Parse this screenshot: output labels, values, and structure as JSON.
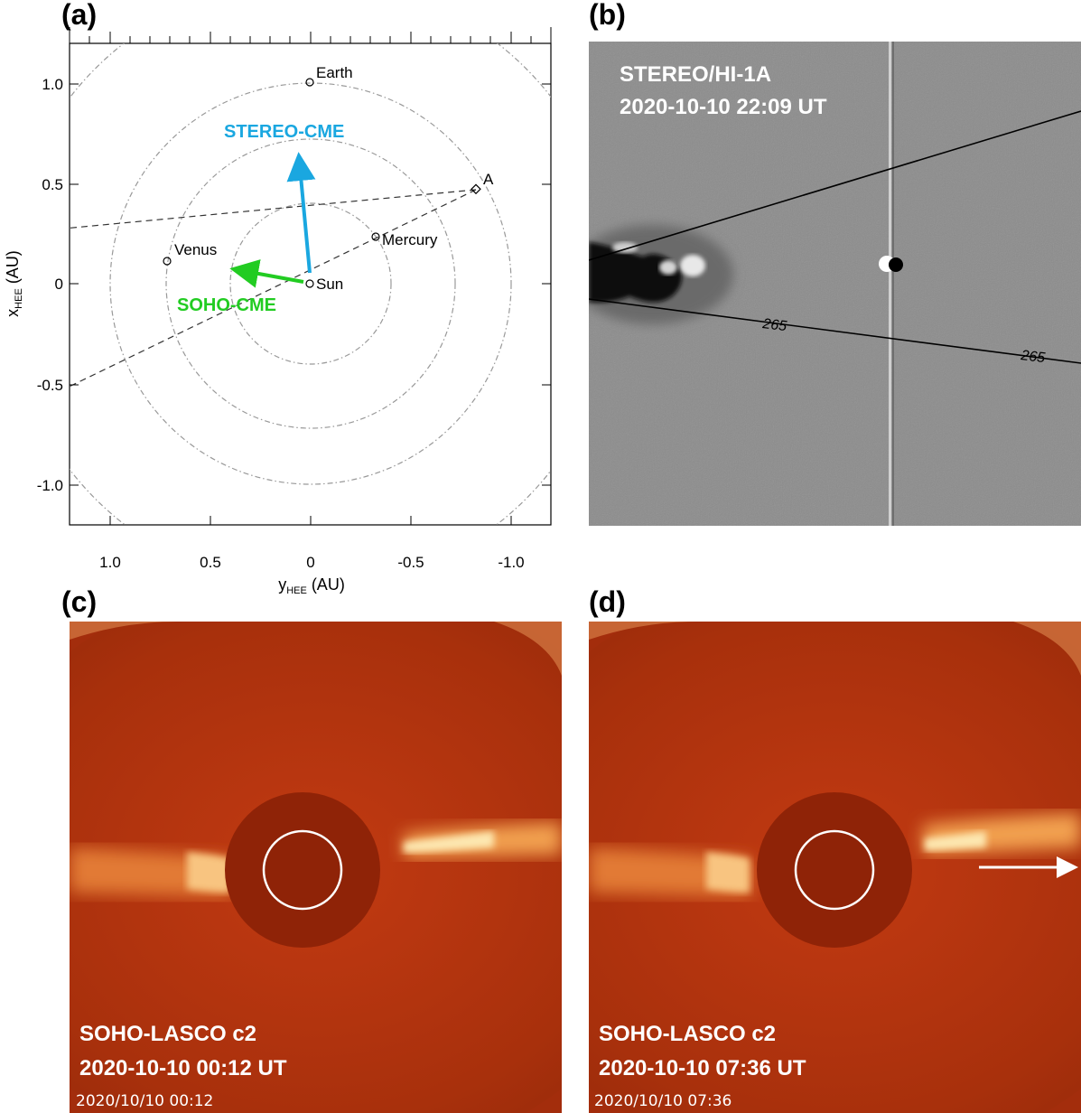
{
  "panels": {
    "a": {
      "label": "(a)"
    },
    "b": {
      "label": "(b)"
    },
    "c": {
      "label": "(c)"
    },
    "d": {
      "label": "(d)"
    }
  },
  "orbit_plot": {
    "x_axis_label_main": "y",
    "x_axis_label_sub": "HEE",
    "x_axis_label_unit": " (AU)",
    "y_axis_label_main": "x",
    "y_axis_label_sub": "HEE",
    "y_axis_label_unit": " (AU)",
    "x_ticks": [
      "1.0",
      "0.5",
      "0",
      "-0.5",
      "-1.0"
    ],
    "y_ticks": [
      "1.0",
      "0.5",
      "0",
      "-0.5",
      "-1.0"
    ],
    "bodies": {
      "earth": "Earth",
      "sun": "Sun",
      "venus": "Venus",
      "mercury": "Mercury",
      "stereo_a": "A"
    },
    "arrows": {
      "stereo_cme": "STEREO-CME",
      "soho_cme": "SOHO-CME"
    },
    "colors": {
      "stereo_cme": "#1aa7e0",
      "soho_cme": "#22cc22"
    }
  },
  "hi1a": {
    "title": "STEREO/HI-1A",
    "time": "2020-10-10 22:09 UT",
    "contour_label_1": "265",
    "contour_label_2": "265"
  },
  "lasco_c": {
    "title": "SOHO-LASCO c2",
    "time": "2020-10-10 00:12 UT",
    "stamp": "2020/10/10  00:12"
  },
  "lasco_d": {
    "title": "SOHO-LASCO c2",
    "time": "2020-10-10 07:36 UT",
    "stamp": "2020/10/10  07:36"
  }
}
